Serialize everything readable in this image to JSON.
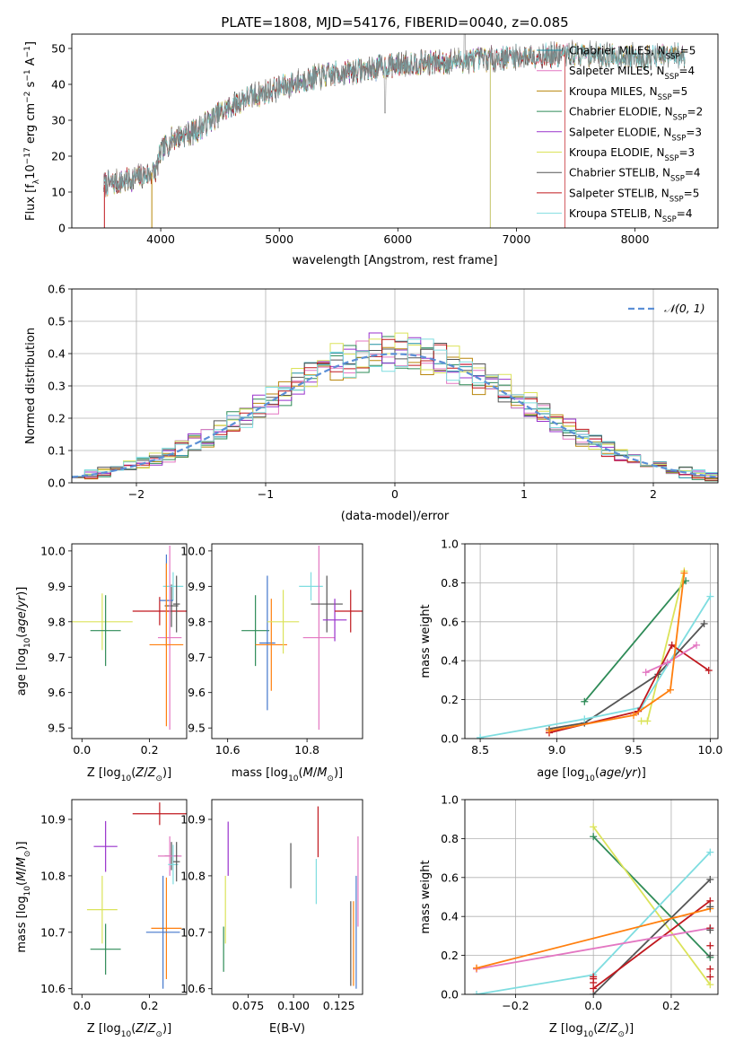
{
  "figure": {
    "title": "PLATE=1808, MJD=54176, FIBERID=0040, z=0.085"
  },
  "colors": {
    "Chabrier MILES": "#1f8fa0",
    "Salpeter MILES": "#e377c2",
    "Kroupa MILES": "#b8860b",
    "Chabrier ELODIE": "#2e8b57",
    "Salpeter ELODIE": "#9932cc",
    "Kroupa ELODIE": "#dbe35a",
    "Chabrier STELIB": "#555555",
    "Salpeter STELIB": "#c0181e",
    "Kroupa STELIB": "#7fdde0",
    "normal": "#5b8fd6",
    "orange": "#ff7f0e",
    "blue": "#4477cc"
  },
  "chart_data": [
    {
      "id": "spectrum",
      "type": "line",
      "title": "PLATE=1808, MJD=54176, FIBERID=0040, z=0.085",
      "xlabel": "wavelength [Angstrom, rest frame]",
      "ylabel_parts": [
        "Flux [f",
        "λ",
        "10",
        "−17",
        " erg cm",
        "−2",
        " s",
        "−1",
        " A",
        "−1",
        "]"
      ],
      "xlim": [
        3250,
        8700
      ],
      "ylim": [
        0,
        54
      ],
      "xticks": [
        4000,
        5000,
        6000,
        7000,
        8000
      ],
      "yticks": [
        0,
        10,
        20,
        30,
        40,
        50
      ],
      "grid": false,
      "legend_placement": "upper right",
      "continuum": [
        [
          3520,
          12
        ],
        [
          3700,
          13
        ],
        [
          3900,
          15
        ],
        [
          3960,
          16
        ],
        [
          4000,
          21
        ],
        [
          4100,
          25
        ],
        [
          4300,
          27
        ],
        [
          4500,
          32
        ],
        [
          4700,
          36
        ],
        [
          4900,
          38
        ],
        [
          5100,
          40
        ],
        [
          5300,
          42
        ],
        [
          5500,
          43
        ],
        [
          5700,
          44
        ],
        [
          5900,
          45
        ],
        [
          6100,
          46
        ],
        [
          6300,
          46
        ],
        [
          6500,
          46.5
        ],
        [
          6700,
          47
        ],
        [
          6900,
          47.5
        ],
        [
          7100,
          48
        ],
        [
          7300,
          48
        ],
        [
          7500,
          48.5
        ],
        [
          7800,
          48
        ],
        [
          8100,
          47.5
        ],
        [
          8400,
          48
        ]
      ],
      "series": [
        {
          "name": "Chabrier MILES",
          "nssp": "5",
          "end": 8420
        },
        {
          "name": "Salpeter MILES",
          "nssp": "4",
          "end": 8420
        },
        {
          "name": "Kroupa MILES",
          "nssp": "5",
          "end": 8420
        },
        {
          "name": "Chabrier ELODIE",
          "nssp": "2",
          "end": 6780
        },
        {
          "name": "Salpeter ELODIE",
          "nssp": "3",
          "end": 6780
        },
        {
          "name": "Kroupa ELODIE",
          "nssp": "3",
          "end": 6780
        },
        {
          "name": "Chabrier STELIB",
          "nssp": "4",
          "end": 8420
        },
        {
          "name": "Salpeter STELIB",
          "nssp": "5",
          "end": 7410
        },
        {
          "name": "Kroupa STELIB",
          "nssp": "4",
          "end": 8420
        }
      ]
    },
    {
      "id": "residuals",
      "type": "histogram",
      "xlabel": "(data-model)/error",
      "ylabel": "Normed distribution",
      "xlim": [
        -2.5,
        2.5
      ],
      "ylim": [
        0,
        0.6
      ],
      "xticks": [
        -2,
        -1,
        0,
        1,
        2
      ],
      "yticks": [
        0.0,
        0.1,
        0.2,
        0.3,
        0.4,
        0.5,
        0.6
      ],
      "grid": true,
      "legend_placement": "upper right",
      "normal_label": "𝒩(0, 1)",
      "bin_width": 0.1,
      "x0": -2.5,
      "series": [
        {
          "name": "Chabrier MILES",
          "offset": 0.01
        },
        {
          "name": "Salpeter MILES",
          "offset": -0.01
        },
        {
          "name": "Kroupa MILES",
          "offset": 0.0
        },
        {
          "name": "Chabrier ELODIE",
          "offset": 0.02
        },
        {
          "name": "Salpeter ELODIE",
          "offset": 0.04
        },
        {
          "name": "Kroupa ELODIE",
          "offset": 0.05
        },
        {
          "name": "Chabrier STELIB",
          "offset": 0.02
        },
        {
          "name": "Salpeter STELIB",
          "offset": 0.03
        },
        {
          "name": "Kroupa STELIB",
          "offset": 0.01
        }
      ]
    },
    {
      "id": "age_vs_Z",
      "type": "scatter",
      "xlabel": "Z [log10(Z/Z⊙)]",
      "ylabel": "age  [log10(age/yr)]",
      "xlim": [
        -0.03,
        0.31
      ],
      "ylim": [
        9.47,
        10.02
      ],
      "xticks": [
        0.0,
        0.2
      ],
      "yticks": [
        9.5,
        9.6,
        9.7,
        9.8,
        9.9,
        10.0
      ],
      "points": [
        {
          "c": "Kroupa ELODIE",
          "x": 0.06,
          "xe": 0.09,
          "y": 9.8,
          "ye": 0.08
        },
        {
          "c": "Chabrier ELODIE",
          "x": 0.07,
          "xe": 0.045,
          "y": 9.775,
          "ye": 0.1
        },
        {
          "c": "Salpeter STELIB",
          "x": 0.23,
          "xe": 0.08,
          "y": 9.83,
          "ye": 0.04
        },
        {
          "c": "Chabrier STELIB",
          "x": 0.265,
          "xe": 0.02,
          "y": 9.845,
          "ye": 0.06
        },
        {
          "c": "Kroupa STELIB",
          "x": 0.27,
          "xe": 0.03,
          "y": 9.9,
          "ye": 0.04
        },
        {
          "c": "blue",
          "x": 0.25,
          "xe": 0.02,
          "y": 9.86,
          "ye": 0.13
        },
        {
          "c": "Salpeter MILES",
          "x": 0.26,
          "xe": 0.035,
          "y": 9.755,
          "ye": 0.26
        },
        {
          "c": "orange",
          "x": 0.25,
          "xe": 0.05,
          "y": 9.735,
          "ye": 0.23
        },
        {
          "c": "Chabrier STELIB",
          "x": 0.28,
          "xe": 0.01,
          "y": 9.85,
          "ye": 0.08
        }
      ]
    },
    {
      "id": "age_vs_mass",
      "type": "scatter",
      "xlabel": "mass [log10(M/M⊙)]",
      "ylabel": "",
      "xlim": [
        10.56,
        10.94
      ],
      "ylim": [
        9.47,
        10.02
      ],
      "xticks": [
        10.6,
        10.8
      ],
      "yticks": [
        9.5,
        9.6,
        9.7,
        9.8,
        9.9,
        10.0
      ],
      "points": [
        {
          "c": "Chabrier ELODIE",
          "x": 10.67,
          "xe": 0.035,
          "y": 9.775,
          "ye": 0.1
        },
        {
          "c": "blue",
          "x": 10.7,
          "xe": 0.02,
          "y": 9.74,
          "ye": 0.19
        },
        {
          "c": "orange",
          "x": 10.71,
          "xe": 0.04,
          "y": 9.735,
          "ye": 0.13
        },
        {
          "c": "Kroupa ELODIE",
          "x": 10.74,
          "xe": 0.04,
          "y": 9.8,
          "ye": 0.09
        },
        {
          "c": "Kroupa STELIB",
          "x": 10.81,
          "xe": 0.03,
          "y": 9.9,
          "ye": 0.04
        },
        {
          "c": "Salpeter MILES",
          "x": 10.83,
          "xe": 0.04,
          "y": 9.755,
          "ye": 0.26
        },
        {
          "c": "Chabrier STELIB",
          "x": 10.85,
          "xe": 0.04,
          "y": 9.85,
          "ye": 0.08
        },
        {
          "c": "Salpeter ELODIE",
          "x": 10.87,
          "xe": 0.03,
          "y": 9.805,
          "ye": 0.06
        },
        {
          "c": "Salpeter STELIB",
          "x": 10.91,
          "xe": 0.04,
          "y": 9.83,
          "ye": 0.06
        }
      ]
    },
    {
      "id": "weight_vs_age",
      "type": "line",
      "xlabel": "age  [log10(age/yr)]",
      "ylabel": "mass weight",
      "xlim": [
        8.4,
        10.05
      ],
      "ylim": [
        0,
        1.0
      ],
      "xticks": [
        8.5,
        9.0,
        9.5,
        10.0
      ],
      "yticks": [
        0.0,
        0.2,
        0.4,
        0.6,
        0.8,
        1.0
      ],
      "grid": true,
      "series": [
        {
          "c": "Chabrier ELODIE",
          "pts": [
            [
              9.18,
              0.19
            ],
            [
              9.84,
              0.81
            ]
          ]
        },
        {
          "c": "Kroupa ELODIE",
          "pts": [
            [
              9.55,
              0.09
            ],
            [
              9.59,
              0.09
            ],
            [
              9.83,
              0.86
            ]
          ]
        },
        {
          "c": "Chabrier STELIB",
          "pts": [
            [
              8.95,
              0.05
            ],
            [
              9.18,
              0.08
            ],
            [
              9.66,
              0.33
            ],
            [
              9.96,
              0.59
            ]
          ]
        },
        {
          "c": "Kroupa STELIB",
          "pts": [
            [
              8.5,
              0.005
            ],
            [
              9.18,
              0.1
            ],
            [
              9.55,
              0.16
            ],
            [
              10.0,
              0.73
            ]
          ]
        },
        {
          "c": "Salpeter STELIB",
          "pts": [
            [
              8.95,
              0.03
            ],
            [
              9.53,
              0.14
            ],
            [
              9.75,
              0.48
            ],
            [
              9.99,
              0.35
            ]
          ]
        },
        {
          "c": "Salpeter MILES",
          "pts": [
            [
              9.58,
              0.34
            ],
            [
              9.72,
              0.39
            ],
            [
              9.91,
              0.48
            ]
          ]
        },
        {
          "c": "orange",
          "pts": [
            [
              8.95,
              0.04
            ],
            [
              9.5,
              0.12
            ],
            [
              9.74,
              0.25
            ],
            [
              9.83,
              0.85
            ]
          ]
        }
      ]
    },
    {
      "id": "mass_vs_Z",
      "type": "scatter",
      "xlabel": "Z [log10(Z/Z⊙)]",
      "ylabel": "mass [log10(M/M⊙)]",
      "xlim": [
        -0.03,
        0.31
      ],
      "ylim": [
        10.59,
        10.935
      ],
      "xticks": [
        0.0,
        0.2
      ],
      "yticks": [
        10.6,
        10.7,
        10.8,
        10.9
      ],
      "points": [
        {
          "c": "Salpeter ELODIE",
          "x": 0.07,
          "xe": 0.035,
          "y": 10.852,
          "ye": 0.045
        },
        {
          "c": "Kroupa ELODIE",
          "x": 0.06,
          "xe": 0.045,
          "y": 10.74,
          "ye": 0.06
        },
        {
          "c": "Chabrier ELODIE",
          "x": 0.07,
          "xe": 0.045,
          "y": 10.67,
          "ye": 0.045
        },
        {
          "c": "Salpeter STELIB",
          "x": 0.23,
          "xe": 0.08,
          "y": 10.91,
          "ye": 0.02
        },
        {
          "c": "Chabrier STELIB",
          "x": 0.265,
          "xe": 0.02,
          "y": 10.835,
          "ye": 0.025
        },
        {
          "c": "Salpeter MILES",
          "x": 0.26,
          "xe": 0.035,
          "y": 10.835,
          "ye": 0.035
        },
        {
          "c": "Kroupa STELIB",
          "x": 0.27,
          "xe": 0.015,
          "y": 10.82,
          "ye": 0.035
        },
        {
          "c": "Chabrier STELIB",
          "x": 0.28,
          "xe": 0.01,
          "y": 10.825,
          "ye": 0.035
        },
        {
          "c": "orange",
          "x": 0.25,
          "xe": 0.045,
          "y": 10.707,
          "ye": 0.09
        },
        {
          "c": "blue",
          "x": 0.24,
          "xe": 0.05,
          "y": 10.7,
          "ye": 0.1
        }
      ]
    },
    {
      "id": "mass_vs_ebv",
      "type": "scatter",
      "xlabel": "E(B-V)",
      "ylabel": "",
      "xlim": [
        0.055,
        0.138
      ],
      "ylim": [
        10.59,
        10.935
      ],
      "xticks": [
        0.075,
        0.1,
        0.125
      ],
      "xtick_labels": [
        "0.075",
        "0.100",
        "0.125"
      ],
      "yticks": [
        10.6,
        10.7,
        10.8,
        10.9
      ],
      "points": [
        {
          "c": "Chabrier ELODIE",
          "x": 0.0615,
          "xe": 0,
          "y": 10.67,
          "ye": 0.04
        },
        {
          "c": "Kroupa ELODIE",
          "x": 0.0625,
          "xe": 0,
          "y": 10.74,
          "ye": 0.06
        },
        {
          "c": "Salpeter ELODIE",
          "x": 0.064,
          "xe": 0,
          "y": 10.848,
          "ye": 0.048
        },
        {
          "c": "Chabrier STELIB",
          "x": 0.0985,
          "xe": 0,
          "y": 10.818,
          "ye": 0.04
        },
        {
          "c": "Salpeter STELIB",
          "x": 0.1135,
          "xe": 0,
          "y": 10.878,
          "ye": 0.045
        },
        {
          "c": "Kroupa STELIB",
          "x": 0.1125,
          "xe": 0,
          "y": 10.79,
          "ye": 0.04
        },
        {
          "c": "Chabrier STELIB",
          "x": 0.1315,
          "xe": 0,
          "y": 10.68,
          "ye": 0.075
        },
        {
          "c": "orange",
          "x": 0.133,
          "xe": 0,
          "y": 10.68,
          "ye": 0.075
        },
        {
          "c": "blue",
          "x": 0.1345,
          "xe": 0,
          "y": 10.7,
          "ye": 0.1
        },
        {
          "c": "Salpeter MILES",
          "x": 0.1355,
          "xe": 0,
          "y": 10.79,
          "ye": 0.08
        }
      ]
    },
    {
      "id": "weight_vs_Z",
      "type": "line",
      "xlabel": "Z [log10(Z/Z⊙)]",
      "ylabel": "mass weight",
      "xlim": [
        -0.33,
        0.32
      ],
      "ylim": [
        0,
        1.0
      ],
      "xticks": [
        -0.2,
        0.0,
        0.2
      ],
      "yticks": [
        0.0,
        0.2,
        0.4,
        0.6,
        0.8,
        1.0
      ],
      "grid": true,
      "series": [
        {
          "c": "Chabrier ELODIE",
          "pts": [
            [
              0.0,
              0.81
            ],
            [
              0.3,
              0.19
            ]
          ]
        },
        {
          "c": "Kroupa ELODIE",
          "pts": [
            [
              0.0,
              0.86
            ],
            [
              0.3,
              0.05
            ]
          ]
        },
        {
          "c": "Kroupa STELIB",
          "pts": [
            [
              -0.3,
              0.0
            ],
            [
              0.0,
              0.1
            ],
            [
              0.3,
              0.73
            ]
          ]
        },
        {
          "c": "Chabrier STELIB",
          "pts": [
            [
              0.0,
              0.0
            ],
            [
              0.3,
              0.59
            ]
          ]
        },
        {
          "c": "Salpeter STELIB",
          "pts": [
            [
              0.0,
              0.03
            ],
            [
              0.3,
              0.48
            ]
          ]
        },
        {
          "c": "Salpeter MILES",
          "pts": [
            [
              -0.3,
              0.13
            ],
            [
              0.3,
              0.34
            ]
          ]
        },
        {
          "c": "orange",
          "pts": [
            [
              -0.3,
              0.135
            ],
            [
              0.3,
              0.44
            ]
          ]
        }
      ],
      "markers_only": [
        {
          "c": "Salpeter STELIB",
          "pts": [
            [
              0.0,
              0.09
            ],
            [
              0.0,
              0.06
            ],
            [
              0.0,
              0.08
            ],
            [
              0.3,
              0.13
            ],
            [
              0.3,
              0.25
            ],
            [
              0.3,
              0.34
            ],
            [
              0.3,
              0.09
            ]
          ]
        },
        {
          "c": "Chabrier STELIB",
          "pts": [
            [
              0.3,
              0.33
            ],
            [
              0.3,
              0.45
            ],
            [
              0.3,
              0.2
            ]
          ]
        }
      ]
    }
  ]
}
